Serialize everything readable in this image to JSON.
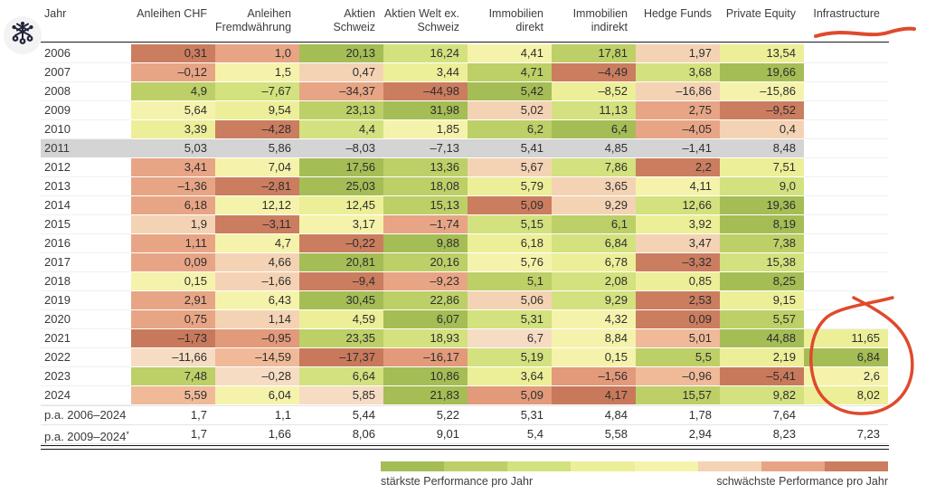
{
  "logo": {
    "icon": "edelweiss-icon"
  },
  "table": {
    "headers": [
      {
        "id": "jahr",
        "lines": [
          "Jahr"
        ]
      },
      {
        "id": "anleihen-chf",
        "lines": [
          "Anleihen CHF"
        ]
      },
      {
        "id": "anleihen-fremdwaehrung",
        "lines": [
          "Anleihen",
          "Fremdwährung"
        ]
      },
      {
        "id": "aktien-schweiz",
        "lines": [
          "Aktien Schweiz"
        ]
      },
      {
        "id": "aktien-welt-ex-schweiz",
        "lines": [
          "Aktien Welt ex.",
          "Schweiz"
        ]
      },
      {
        "id": "immobilien-direkt",
        "lines": [
          "Immobilien",
          "direkt"
        ]
      },
      {
        "id": "immobilien-indirekt",
        "lines": [
          "Immobilien",
          "indirekt"
        ]
      },
      {
        "id": "hedge-funds",
        "lines": [
          "Hedge Funds"
        ]
      },
      {
        "id": "private-equity",
        "lines": [
          "Private Equity"
        ]
      },
      {
        "id": "infrastructure",
        "lines": [
          "Infrastructure"
        ]
      }
    ],
    "rows": [
      {
        "year": "2006",
        "values": [
          "0,31",
          "1,0",
          "20,13",
          "16,24",
          "4,41",
          "17,81",
          "1,97",
          "13,54",
          ""
        ]
      },
      {
        "year": "2007",
        "values": [
          "–0,12",
          "1,5",
          "0,47",
          "3,44",
          "4,71",
          "–4,49",
          "3,68",
          "19,66",
          ""
        ]
      },
      {
        "year": "2008",
        "values": [
          "4,9",
          "–7,67",
          "–34,37",
          "–44,98",
          "5,42",
          "–8,52",
          "–16,86",
          "–15,86",
          ""
        ]
      },
      {
        "year": "2009",
        "values": [
          "5,64",
          "9,54",
          "23,13",
          "31,98",
          "5,02",
          "11,13",
          "2,75",
          "–9,52",
          ""
        ]
      },
      {
        "year": "2010",
        "values": [
          "3,39",
          "–4,28",
          "4,4",
          "1,85",
          "6,2",
          "6,4",
          "–4,05",
          "0,4",
          ""
        ]
      },
      {
        "year": "2011",
        "highlight": true,
        "values": [
          "5,03",
          "5,86",
          "–8,03",
          "–7,13",
          "5,41",
          "4,85",
          "–1,41",
          "8,48",
          ""
        ]
      },
      {
        "year": "2012",
        "values": [
          "3,41",
          "7,04",
          "17,56",
          "13,36",
          "5,67",
          "7,86",
          "2,2",
          "7,51",
          ""
        ]
      },
      {
        "year": "2013",
        "values": [
          "–1,36",
          "–2,81",
          "25,03",
          "18,08",
          "5,79",
          "3,65",
          "4,11",
          "9,0",
          ""
        ]
      },
      {
        "year": "2014",
        "values": [
          "6,18",
          "12,12",
          "12,45",
          "15,13",
          "5,09",
          "9,29",
          "12,66",
          "19,36",
          ""
        ]
      },
      {
        "year": "2015",
        "values": [
          "1,9",
          "–3,11",
          "3,17",
          "–1,74",
          "5,15",
          "6,1",
          "3,92",
          "8,19",
          ""
        ]
      },
      {
        "year": "2016",
        "values": [
          "1,11",
          "4,7",
          "–0,22",
          "9,88",
          "6,18",
          "6,84",
          "3,47",
          "7,38",
          ""
        ]
      },
      {
        "year": "2017",
        "values": [
          "0,09",
          "4,66",
          "20,81",
          "20,16",
          "5,76",
          "6,78",
          "–3,32",
          "15,38",
          ""
        ]
      },
      {
        "year": "2018",
        "values": [
          "0,15",
          "–1,66",
          "–9,4",
          "–9,23",
          "5,1",
          "2,08",
          "0,85",
          "8,25",
          ""
        ]
      },
      {
        "year": "2019",
        "values": [
          "2,91",
          "6,43",
          "30,45",
          "22,86",
          "5,06",
          "9,29",
          "2,53",
          "9,15",
          ""
        ]
      },
      {
        "year": "2020",
        "values": [
          "0,75",
          "1,14",
          "4,59",
          "6,07",
          "5,31",
          "4,32",
          "0,09",
          "5,57",
          ""
        ]
      },
      {
        "year": "2021",
        "values": [
          "–1,73",
          "–0,95",
          "23,35",
          "18,93",
          "6,7",
          "8,84",
          "5,01",
          "44,88",
          "11,65"
        ]
      },
      {
        "year": "2022",
        "values": [
          "–11,66",
          "–14,59",
          "–17,37",
          "–16,17",
          "5,19",
          "0,15",
          "5,5",
          "2,19",
          "6,84"
        ]
      },
      {
        "year": "2023",
        "values": [
          "7,48",
          "–0,28",
          "6,64",
          "10,86",
          "3,64",
          "–1,56",
          "–0,96",
          "–5,41",
          "2,6"
        ]
      },
      {
        "year": "2024",
        "values": [
          "5,59",
          "6,04",
          "5,85",
          "21,83",
          "5,09",
          "4,17",
          "15,57",
          "9,82",
          "8,02"
        ]
      }
    ],
    "footer_rows": [
      {
        "label": "p.a. 2006–2024",
        "sup": "",
        "values": [
          "1,7",
          "1,1",
          "5,44",
          "5,22",
          "5,31",
          "4,84",
          "1,78",
          "7,64",
          ""
        ]
      },
      {
        "label": "p.a. 2009–2024",
        "sup": "*",
        "values": [
          "1,7",
          "1,66",
          "8,06",
          "9,01",
          "5,4",
          "5,58",
          "2,94",
          "8,23",
          "7,23"
        ]
      }
    ]
  },
  "heatmap": {
    "palette_8": [
      "#a5bd55",
      "#bdcf67",
      "#d3e17e",
      "#ecef98",
      "#f5f3ab",
      "#f4d3b4",
      "#e8a585",
      "#cb7d5f"
    ],
    "palette_9": [
      "#a5bd55",
      "#bdcf67",
      "#d3e17e",
      "#ecef98",
      "#f5f3ab",
      "#f6dcc3",
      "#f0ba99",
      "#e29a7a",
      "#c9795b"
    ],
    "highlight_gray": "#d4d4d4"
  },
  "legend": {
    "colors": [
      "#a5bd55",
      "#bdcf67",
      "#d3e17e",
      "#ecef98",
      "#f5f3ab",
      "#f4d3b4",
      "#e8a585",
      "#cb7d5f"
    ],
    "left_label": "stärkste Performance pro Jahr",
    "right_label": "schwächste Performance pro Jahr"
  },
  "annotations": {
    "color": "#df4a2c",
    "underline_target": "infrastructure-header",
    "circle_target": "infrastructure-values-2021-2024"
  },
  "chart_data": {
    "type": "heatmap",
    "title": "Performance pro Jahr nach Anlageklasse",
    "columns": [
      "Anleihen CHF",
      "Anleihen Fremdwährung",
      "Aktien Schweiz",
      "Aktien Welt ex. Schweiz",
      "Immobilien direkt",
      "Immobilien indirekt",
      "Hedge Funds",
      "Private Equity",
      "Infrastructure"
    ],
    "rows": [
      {
        "year": 2006,
        "values": [
          0.31,
          1.0,
          20.13,
          16.24,
          4.41,
          17.81,
          1.97,
          13.54,
          null
        ]
      },
      {
        "year": 2007,
        "values": [
          -0.12,
          1.5,
          0.47,
          3.44,
          4.71,
          -4.49,
          3.68,
          19.66,
          null
        ]
      },
      {
        "year": 2008,
        "values": [
          4.9,
          -7.67,
          -34.37,
          -44.98,
          5.42,
          -8.52,
          -16.86,
          -15.86,
          null
        ]
      },
      {
        "year": 2009,
        "values": [
          5.64,
          9.54,
          23.13,
          31.98,
          5.02,
          11.13,
          2.75,
          -9.52,
          null
        ]
      },
      {
        "year": 2010,
        "values": [
          3.39,
          -4.28,
          4.4,
          1.85,
          6.2,
          6.4,
          -4.05,
          0.4,
          null
        ]
      },
      {
        "year": 2011,
        "values": [
          5.03,
          5.86,
          -8.03,
          -7.13,
          5.41,
          4.85,
          -1.41,
          8.48,
          null
        ]
      },
      {
        "year": 2012,
        "values": [
          3.41,
          7.04,
          17.56,
          13.36,
          5.67,
          7.86,
          2.2,
          7.51,
          null
        ]
      },
      {
        "year": 2013,
        "values": [
          -1.36,
          -2.81,
          25.03,
          18.08,
          5.79,
          3.65,
          4.11,
          9.0,
          null
        ]
      },
      {
        "year": 2014,
        "values": [
          6.18,
          12.12,
          12.45,
          15.13,
          5.09,
          9.29,
          12.66,
          19.36,
          null
        ]
      },
      {
        "year": 2015,
        "values": [
          1.9,
          -3.11,
          3.17,
          -1.74,
          5.15,
          6.1,
          3.92,
          8.19,
          null
        ]
      },
      {
        "year": 2016,
        "values": [
          1.11,
          4.7,
          -0.22,
          9.88,
          6.18,
          6.84,
          3.47,
          7.38,
          null
        ]
      },
      {
        "year": 2017,
        "values": [
          0.09,
          4.66,
          20.81,
          20.16,
          5.76,
          6.78,
          -3.32,
          15.38,
          null
        ]
      },
      {
        "year": 2018,
        "values": [
          0.15,
          -1.66,
          -9.4,
          -9.23,
          5.1,
          2.08,
          0.85,
          8.25,
          null
        ]
      },
      {
        "year": 2019,
        "values": [
          2.91,
          6.43,
          30.45,
          22.86,
          5.06,
          9.29,
          2.53,
          9.15,
          null
        ]
      },
      {
        "year": 2020,
        "values": [
          0.75,
          1.14,
          4.59,
          6.07,
          5.31,
          4.32,
          0.09,
          5.57,
          null
        ]
      },
      {
        "year": 2021,
        "values": [
          -1.73,
          -0.95,
          23.35,
          18.93,
          6.7,
          8.84,
          5.01,
          44.88,
          11.65
        ]
      },
      {
        "year": 2022,
        "values": [
          -11.66,
          -14.59,
          -17.37,
          -16.17,
          5.19,
          0.15,
          5.5,
          2.19,
          6.84
        ]
      },
      {
        "year": 2023,
        "values": [
          7.48,
          -0.28,
          6.64,
          10.86,
          3.64,
          -1.56,
          -0.96,
          -5.41,
          2.6
        ]
      },
      {
        "year": 2024,
        "values": [
          5.59,
          6.04,
          5.85,
          21.83,
          5.09,
          4.17,
          15.57,
          9.82,
          8.02
        ]
      }
    ],
    "footer_rows": [
      {
        "label": "p.a. 2006–2024",
        "values": [
          1.7,
          1.1,
          5.44,
          5.22,
          5.31,
          4.84,
          1.78,
          7.64,
          null
        ]
      },
      {
        "label": "p.a. 2009–2024*",
        "values": [
          1.7,
          1.66,
          8.06,
          9.01,
          5.4,
          5.58,
          2.94,
          8.23,
          7.23
        ]
      }
    ],
    "color_coding": "rank within year row: green = strongest, red = weakest; 2011 row shown gray",
    "legend": {
      "left": "stärkste Performance pro Jahr",
      "right": "schwächste Performance pro Jahr",
      "position": "bottom"
    }
  }
}
